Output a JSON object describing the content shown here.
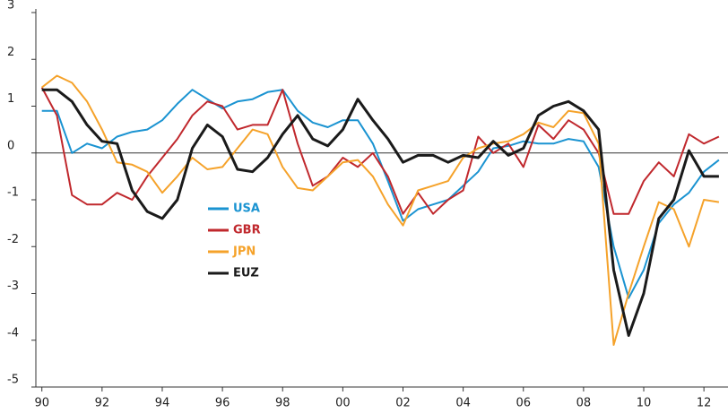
{
  "chart_data": {
    "type": "line",
    "x": [
      1990,
      1990.5,
      1991,
      1991.5,
      1992,
      1992.5,
      1993,
      1993.5,
      1994,
      1994.5,
      1995,
      1995.5,
      1996,
      1996.5,
      1997,
      1997.5,
      1998,
      1998.5,
      1999,
      1999.5,
      2000,
      2000.5,
      2001,
      2001.5,
      2002,
      2002.5,
      2003,
      2003.5,
      2004,
      2004.5,
      2005,
      2005.5,
      2006,
      2006.5,
      2007,
      2007.5,
      2008,
      2008.5,
      2009,
      2009.5,
      2010,
      2010.5,
      2011,
      2011.5,
      2012,
      2012.5
    ],
    "series": [
      {
        "name": "USA",
        "color": "#1a93d1",
        "values": [
          0.9,
          0.9,
          0.0,
          0.2,
          0.1,
          0.35,
          0.45,
          0.5,
          0.7,
          1.05,
          1.35,
          1.15,
          0.95,
          1.1,
          1.15,
          1.3,
          1.35,
          0.9,
          0.65,
          0.55,
          0.7,
          0.7,
          0.2,
          -0.6,
          -1.45,
          -1.2,
          -1.1,
          -1.0,
          -0.7,
          -0.4,
          0.1,
          0.15,
          0.25,
          0.2,
          0.2,
          0.3,
          0.25,
          -0.3,
          -2.0,
          -3.1,
          -2.5,
          -1.5,
          -1.1,
          -0.85,
          -0.4,
          -0.15
        ]
      },
      {
        "name": "GBR",
        "color": "#c0282d",
        "values": [
          1.4,
          0.8,
          -0.9,
          -1.1,
          -1.1,
          -0.85,
          -1.0,
          -0.5,
          -0.1,
          0.3,
          0.8,
          1.1,
          1.0,
          0.5,
          0.6,
          0.6,
          1.35,
          0.2,
          -0.7,
          -0.5,
          -0.1,
          -0.3,
          0.0,
          -0.5,
          -1.3,
          -0.85,
          -1.3,
          -1.0,
          -0.8,
          0.35,
          0.0,
          0.2,
          -0.3,
          0.6,
          0.3,
          0.7,
          0.5,
          0.0,
          -1.3,
          -1.3,
          -0.6,
          -0.2,
          -0.5,
          0.4,
          0.2,
          0.35
        ]
      },
      {
        "name": "JPN",
        "color": "#f5a22a",
        "values": [
          1.4,
          1.65,
          1.5,
          1.1,
          0.5,
          -0.2,
          -0.25,
          -0.4,
          -0.85,
          -0.5,
          -0.1,
          -0.35,
          -0.3,
          0.1,
          0.5,
          0.4,
          -0.3,
          -0.75,
          -0.8,
          -0.5,
          -0.2,
          -0.15,
          -0.5,
          -1.1,
          -1.55,
          -0.8,
          -0.7,
          -0.6,
          -0.1,
          0.1,
          0.2,
          0.25,
          0.4,
          0.65,
          0.55,
          0.9,
          0.85,
          0.2,
          -4.1,
          -3.0,
          -2.0,
          -1.05,
          -1.2,
          -2.0,
          -1.0,
          -1.05
        ]
      },
      {
        "name": "EUZ",
        "color": "#1a1a1a",
        "values": [
          1.35,
          1.35,
          1.1,
          0.6,
          0.25,
          0.2,
          -0.8,
          -1.25,
          -1.4,
          -1.0,
          0.1,
          0.6,
          0.35,
          -0.35,
          -0.4,
          -0.1,
          0.4,
          0.8,
          0.3,
          0.15,
          0.5,
          1.15,
          0.7,
          0.3,
          -0.2,
          -0.05,
          -0.05,
          -0.2,
          -0.05,
          -0.1,
          0.25,
          -0.05,
          0.1,
          0.8,
          1.0,
          1.1,
          0.9,
          0.5,
          -2.5,
          -3.9,
          -3.0,
          -1.4,
          -1.0,
          0.05,
          -0.5,
          -0.5
        ]
      }
    ],
    "xlim": [
      1989.8,
      2012.8
    ],
    "xticks": [
      {
        "value": 1990,
        "label": "90"
      },
      {
        "value": 1992,
        "label": "92"
      },
      {
        "value": 1994,
        "label": "94"
      },
      {
        "value": 1996,
        "label": "96"
      },
      {
        "value": 1998,
        "label": "98"
      },
      {
        "value": 2000,
        "label": "00"
      },
      {
        "value": 2002,
        "label": "02"
      },
      {
        "value": 2004,
        "label": "04"
      },
      {
        "value": 2006,
        "label": "06"
      },
      {
        "value": 2008,
        "label": "08"
      },
      {
        "value": 2010,
        "label": "10"
      },
      {
        "value": 2012,
        "label": "12"
      }
    ],
    "ylim": [
      -5,
      3
    ],
    "yticks": [
      -5,
      -4,
      -3,
      -2,
      -1,
      0,
      1,
      2,
      3
    ]
  }
}
